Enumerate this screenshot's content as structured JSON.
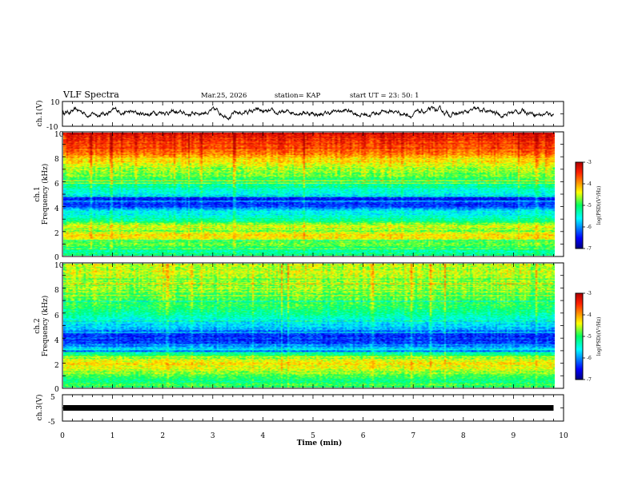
{
  "header": {
    "title": "VLF Spectra",
    "date": "Mar.25, 2026",
    "station": "station= KAP",
    "start_ut": "start  UT  =   23: 50: 1"
  },
  "chart_data": [
    {
      "name": "ch1-waveform",
      "type": "line",
      "ylabel": "ch.1(V)",
      "ylim": [
        -10,
        10
      ],
      "y_tick_labels": [
        "10",
        "-10"
      ],
      "xlim": [
        0,
        10
      ],
      "series_mean": 1,
      "series_amplitude": 2.5,
      "x_extent": 9.8
    },
    {
      "name": "ch1-spectrogram",
      "type": "heatmap",
      "ylabel": [
        "ch.1",
        "Frequency  (kHz)"
      ],
      "ylim": [
        0,
        10
      ],
      "y_tick_labels": [
        "0",
        "2",
        "4",
        "6",
        "8",
        "10"
      ],
      "xlim": [
        0,
        10
      ],
      "x_extent": 9.8,
      "colorbar": {
        "label": "log(PSD)(V²/Hz)",
        "range": [
          -7,
          -3
        ],
        "tick_labels": [
          "-3",
          "-4",
          "-5",
          "-6",
          "-7"
        ]
      },
      "profile_khz": [
        [
          0,
          -5.1
        ],
        [
          0.4,
          -5.3
        ],
        [
          0.8,
          -4.9
        ],
        [
          1.2,
          -4.6
        ],
        [
          1.6,
          -4.2
        ],
        [
          2.0,
          -4.7
        ],
        [
          2.4,
          -4.4
        ],
        [
          2.8,
          -5.2
        ],
        [
          3.2,
          -5.4
        ],
        [
          3.6,
          -5.6
        ],
        [
          4.0,
          -6.3
        ],
        [
          4.6,
          -6.4
        ],
        [
          5.0,
          -5.6
        ],
        [
          5.6,
          -5.2
        ],
        [
          6.5,
          -4.8
        ],
        [
          7.5,
          -4.4
        ],
        [
          8.5,
          -3.7
        ],
        [
          10,
          -3.3
        ]
      ]
    },
    {
      "name": "ch2-spectrogram",
      "type": "heatmap",
      "ylabel": [
        "ch.2",
        "Frequency  (kHz)"
      ],
      "ylim": [
        0,
        10
      ],
      "y_tick_labels": [
        "0",
        "2",
        "4",
        "6",
        "8",
        "10"
      ],
      "xlim": [
        0,
        10
      ],
      "x_extent": 9.8,
      "colorbar": {
        "label": "log(PSD)(V²/Hz)",
        "range": [
          -7,
          -3
        ],
        "tick_labels": [
          "-3",
          "-4",
          "-5",
          "-6",
          "-7"
        ]
      },
      "profile_khz": [
        [
          0,
          -4.9
        ],
        [
          0.5,
          -5.1
        ],
        [
          1.0,
          -4.8
        ],
        [
          1.6,
          -4.4
        ],
        [
          2.0,
          -4.3
        ],
        [
          2.4,
          -4.7
        ],
        [
          2.8,
          -5.3
        ],
        [
          3.2,
          -5.8
        ],
        [
          3.6,
          -6.3
        ],
        [
          4.2,
          -6.4
        ],
        [
          4.8,
          -5.8
        ],
        [
          5.4,
          -5.6
        ],
        [
          6.0,
          -5.2
        ],
        [
          7.0,
          -4.9
        ],
        [
          8.0,
          -4.7
        ],
        [
          9.0,
          -4.6
        ],
        [
          10,
          -4.5
        ]
      ]
    },
    {
      "name": "ch3-waveform",
      "type": "line",
      "ylabel": "ch.3(V)",
      "ylim": [
        -5,
        5
      ],
      "y_tick_labels": [
        "5",
        "-5"
      ],
      "xlim": [
        0,
        10
      ],
      "xlabel": "Time  (min)",
      "x_tick_labels": [
        "0",
        "1",
        "2",
        "3",
        "4",
        "5",
        "6",
        "7",
        "8",
        "9",
        "10"
      ],
      "band_value": 0,
      "x_extent": 9.8
    }
  ]
}
